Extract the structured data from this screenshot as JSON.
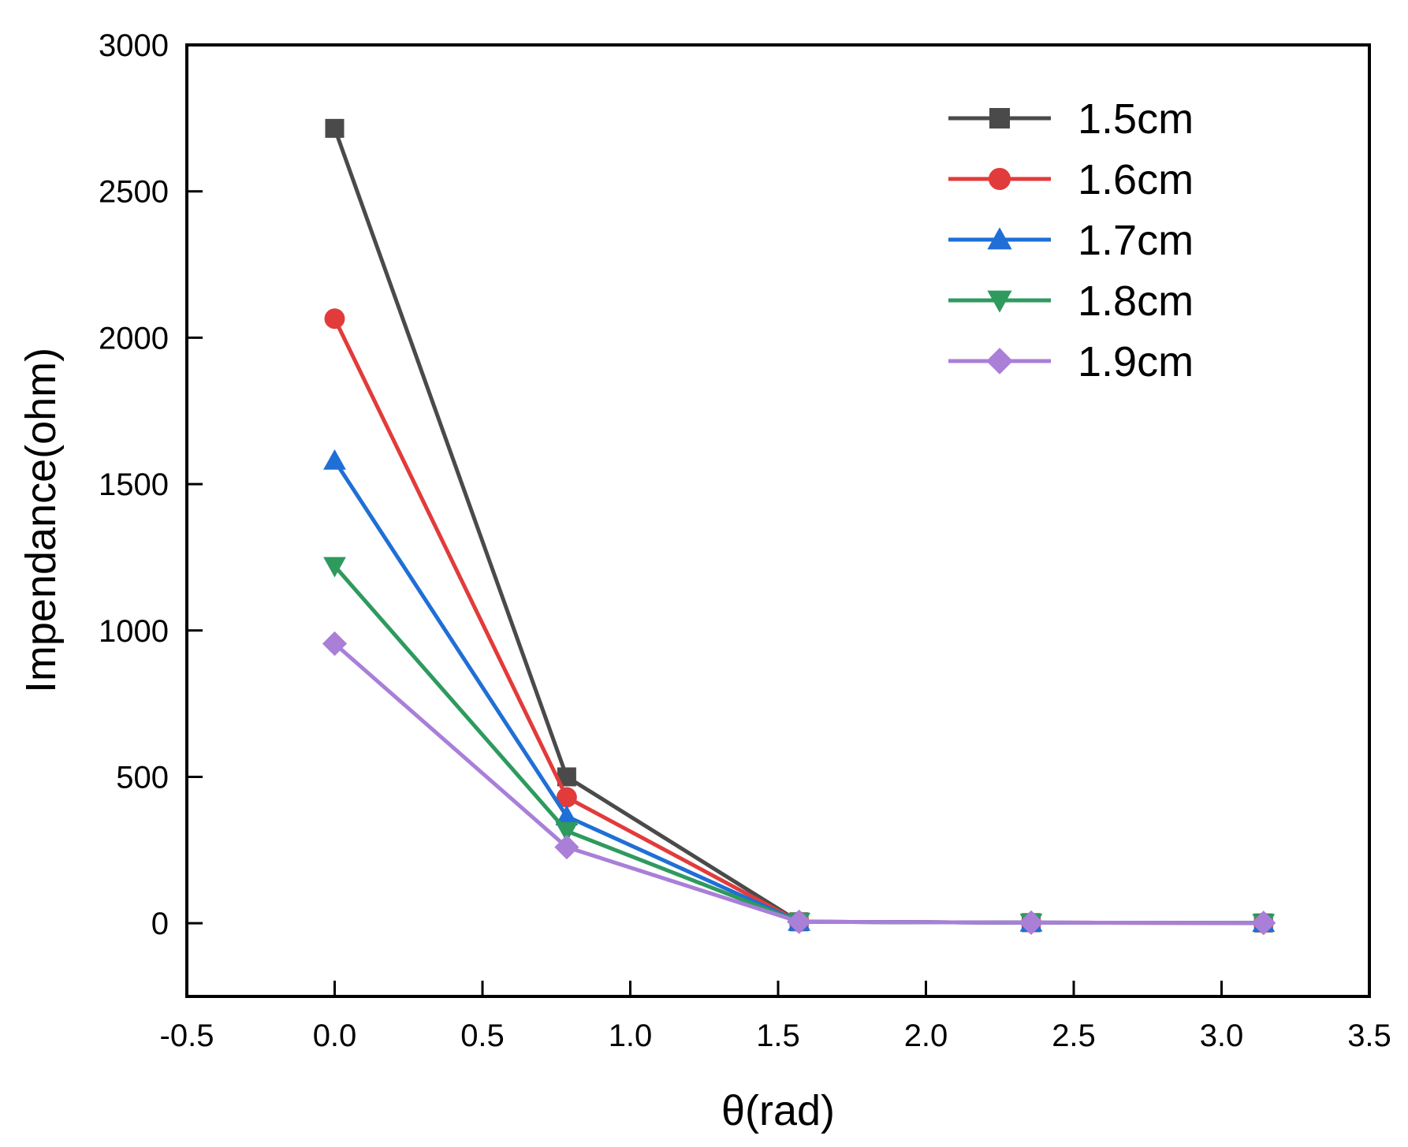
{
  "chart_data": {
    "type": "line",
    "title": "",
    "xlabel": "θ(rad)",
    "ylabel": "Impendance(ohm)",
    "xlim": [
      -0.5,
      3.5
    ],
    "ylim": [
      -250,
      3000
    ],
    "xticks": [
      -0.5,
      0.0,
      0.5,
      1.0,
      1.5,
      2.0,
      2.5,
      3.0,
      3.5
    ],
    "xtick_labels": [
      "-0.5",
      "0.0",
      "0.5",
      "1.0",
      "1.5",
      "2.0",
      "2.5",
      "3.0",
      "3.5"
    ],
    "yticks": [
      0,
      500,
      1000,
      1500,
      2000,
      2500,
      3000
    ],
    "ytick_labels": [
      "0",
      "500",
      "1000",
      "1500",
      "2000",
      "2500",
      "3000"
    ],
    "grid": false,
    "legend_position": "top-right",
    "x": [
      0.0,
      0.785,
      1.571,
      2.356,
      3.142
    ],
    "series": [
      {
        "name": "1.5cm",
        "color": "#4a4a4a",
        "marker": "square",
        "values": [
          2715,
          500,
          5,
          2,
          1
        ]
      },
      {
        "name": "1.6cm",
        "color": "#e23b3b",
        "marker": "circle",
        "values": [
          2065,
          430,
          5,
          2,
          1
        ]
      },
      {
        "name": "1.7cm",
        "color": "#1f6fd6",
        "marker": "triangle-up",
        "values": [
          1580,
          365,
          5,
          2,
          1
        ]
      },
      {
        "name": "1.8cm",
        "color": "#2e9a5e",
        "marker": "triangle-down",
        "values": [
          1220,
          315,
          5,
          2,
          1
        ]
      },
      {
        "name": "1.9cm",
        "color": "#a97fd8",
        "marker": "diamond",
        "values": [
          955,
          260,
          5,
          2,
          1
        ]
      }
    ]
  }
}
